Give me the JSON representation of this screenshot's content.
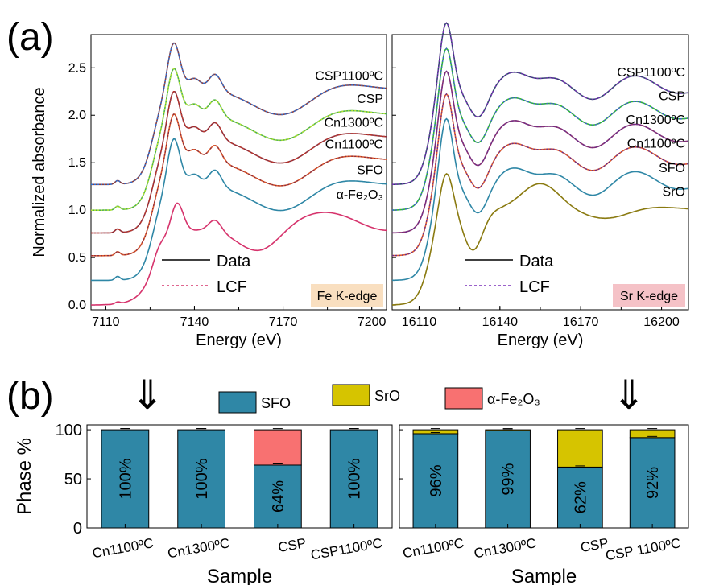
{
  "panel_labels": {
    "a": "(a)",
    "b": "(b)"
  },
  "arrow_glyph": "⇓",
  "colors": {
    "data_line": "#000000",
    "lcf_fe": "#d6336c",
    "lcf_sr": "#7a2fb8",
    "fe_badge": "#f9dfc0",
    "sr_badge": "#f5c2c7",
    "SFO": "#2f87a6",
    "SrO": "#d6c400",
    "Fe2O3": "#f87171"
  },
  "chart_data": [
    {
      "id": "fe_xanes",
      "type": "line",
      "badge": "Fe K-edge",
      "xlabel": "Energy (eV)",
      "ylabel": "Normalized absorbance",
      "xlim": [
        7105,
        7205
      ],
      "ylim": [
        -0.05,
        2.85
      ],
      "xticks": [
        7110,
        7140,
        7170,
        7200
      ],
      "yticks": [
        0.0,
        0.5,
        1.0,
        1.5,
        2.0,
        2.5
      ],
      "ytick_labels": [
        "0.0",
        "0.5",
        "1.0",
        "1.5",
        "2.0",
        "2.5"
      ],
      "legend": {
        "data": "Data",
        "lcf": "LCF"
      },
      "edge": 7130,
      "series": [
        {
          "name": "CSP1100ºC",
          "label_y": 2.37,
          "offset": 1.27,
          "color": "#8a3f3f",
          "lcf_color": "#2b6fd6",
          "lcf": true,
          "shape": "SFO"
        },
        {
          "name": "CSP",
          "label_y": 2.13,
          "offset": 1.0,
          "color": "#4caf50",
          "lcf_color": "#b8e62e",
          "lcf": true,
          "shape": "SFO"
        },
        {
          "name": "Cn1300ºC",
          "label_y": 1.88,
          "offset": 0.76,
          "color": "#8a2f3f",
          "lcf_color": "#c0392b",
          "lcf": true,
          "shape": "SFO"
        },
        {
          "name": "Cn1100ºC",
          "label_y": 1.65,
          "offset": 0.52,
          "color": "#e05a2b",
          "lcf_color": "#8a2f3f",
          "lcf": true,
          "shape": "SFO"
        },
        {
          "name": "SFO",
          "label_y": 1.38,
          "offset": 0.26,
          "color": "#2f87a6",
          "lcf": false,
          "shape": "SFO"
        },
        {
          "name": "α-Fe₂O₃",
          "label_y": 1.12,
          "offset": 0.0,
          "color": "#d6336c",
          "lcf": false,
          "shape": "FeO"
        }
      ]
    },
    {
      "id": "sr_xanes",
      "type": "line",
      "badge": "Sr K-edge",
      "xlabel": "Energy (eV)",
      "xlim": [
        16100,
        16210
      ],
      "ylim": [
        -0.05,
        2.85
      ],
      "xticks": [
        16110,
        16140,
        16170,
        16200
      ],
      "legend": {
        "data": "Data",
        "lcf": "LCF"
      },
      "edge": 16116,
      "series": [
        {
          "name": "CSP1100ºC",
          "label_y": 2.41,
          "offset": 1.27,
          "color": "#2e4a6b",
          "lcf_color": "#7a2fb8",
          "lcf": true,
          "shape": "SFO"
        },
        {
          "name": "CSP",
          "label_y": 2.16,
          "offset": 1.0,
          "color": "#2eb82e",
          "lcf_color": "#4060d0",
          "lcf": true,
          "shape": "SFO"
        },
        {
          "name": "Cn1300ºC",
          "label_y": 1.91,
          "offset": 0.76,
          "color": "#8a2f6f",
          "lcf_color": "#6b2f8a",
          "lcf": true,
          "shape": "SFO"
        },
        {
          "name": "Cn1100ºC",
          "label_y": 1.66,
          "offset": 0.52,
          "color": "#e05a2b",
          "lcf_color": "#6b2f8a",
          "lcf": true,
          "shape": "SFO"
        },
        {
          "name": "SFO",
          "label_y": 1.4,
          "offset": 0.26,
          "color": "#2f87a6",
          "lcf": false,
          "shape": "SFO"
        },
        {
          "name": "SrO",
          "label_y": 1.15,
          "offset": 0.0,
          "color": "#8a7a10",
          "lcf": false,
          "shape": "SrO"
        }
      ]
    },
    {
      "id": "fe_phase",
      "type": "bar",
      "stacked": true,
      "xlabel": "Sample",
      "ylabel": "Phase %",
      "ylim": [
        0,
        105
      ],
      "yticks": [
        0,
        50,
        100
      ],
      "categories": [
        "Cn1100ºC",
        "Cn1300ºC",
        "CSP",
        "CSP1100ºC"
      ],
      "series": [
        {
          "name": "SFO",
          "values": [
            100,
            100,
            64,
            100
          ]
        },
        {
          "name": "α-Fe₂O₃",
          "values": [
            0,
            0,
            36,
            0
          ]
        }
      ],
      "labels": [
        "100%",
        "100%",
        "64%",
        "100%"
      ]
    },
    {
      "id": "sr_phase",
      "type": "bar",
      "stacked": true,
      "xlabel": "Sample",
      "ylim": [
        0,
        105
      ],
      "categories": [
        "Cn1100ºC",
        "Cn1300ºC",
        "CSP",
        "CSP 1100ºC"
      ],
      "series": [
        {
          "name": "SFO",
          "values": [
            96,
            99,
            62,
            92
          ]
        },
        {
          "name": "SrO",
          "values": [
            4,
            1,
            38,
            8
          ]
        }
      ],
      "labels": [
        "96%",
        "99%",
        "62%",
        "92%"
      ]
    }
  ],
  "bar_legend": [
    {
      "name": "SFO",
      "color": "#2f87a6"
    },
    {
      "name": "SrO",
      "color": "#d6c400"
    },
    {
      "name": "α-Fe₂O₃",
      "color": "#f87171"
    }
  ]
}
